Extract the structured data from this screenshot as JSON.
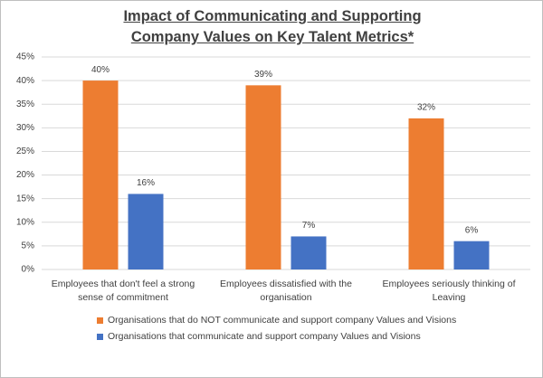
{
  "chart_data": {
    "type": "bar",
    "title": "Impact of Communicating and Supporting Company Values on Key Talent Metrics*",
    "categories": [
      "Employees that don't feel a strong sense of commitment",
      "Employees dissatisfied with the organisation",
      "Employees seriously thinking of Leaving"
    ],
    "series": [
      {
        "name": "Organisations that do NOT communicate and support company Values and Visions",
        "color": "#ed7d31",
        "values": [
          40,
          39,
          32
        ],
        "value_labels": [
          "40%",
          "39%",
          "32%"
        ]
      },
      {
        "name": "Organisations that communicate and support company Values and Visions",
        "color": "#4472c4",
        "values": [
          16,
          7,
          6
        ],
        "value_labels": [
          "16%",
          "7%",
          "6%"
        ]
      }
    ],
    "ylim": [
      0,
      45
    ],
    "yticks": [
      {
        "value": 0,
        "label": "0%"
      },
      {
        "value": 5,
        "label": "5%"
      },
      {
        "value": 10,
        "label": "10%"
      },
      {
        "value": 15,
        "label": "15%"
      },
      {
        "value": 20,
        "label": "20%"
      },
      {
        "value": 25,
        "label": "25%"
      },
      {
        "value": 30,
        "label": "30%"
      },
      {
        "value": 35,
        "label": "35%"
      },
      {
        "value": 40,
        "label": "40%"
      },
      {
        "value": 45,
        "label": "45%"
      }
    ],
    "grid": true
  }
}
